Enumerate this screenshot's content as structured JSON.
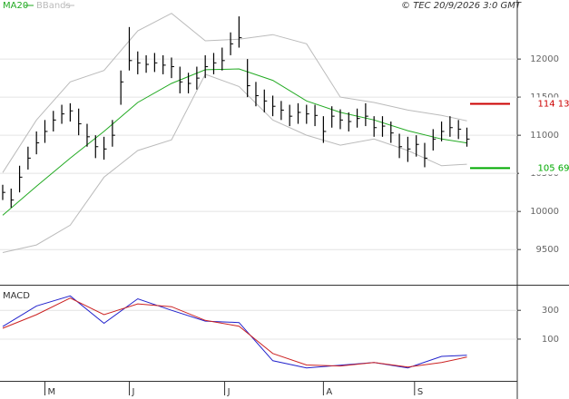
{
  "chart_data": [
    {
      "type": "ohlc",
      "source": "© TEC 20/9/2026 3:0 GMT",
      "xlim": [
        -0.32,
        60.97
      ],
      "ylim": [
        9050,
        12775
      ],
      "yticks": [
        9500,
        10000,
        10500,
        11000,
        11500,
        12000
      ],
      "grid": true,
      "high": [
        10350,
        10300,
        10600,
        10850,
        11050,
        11200,
        11320,
        11400,
        11420,
        11350,
        11150,
        11000,
        10980,
        11200,
        11850,
        12420,
        12100,
        12050,
        12080,
        12050,
        12020,
        11900,
        11820,
        11900,
        12050,
        12080,
        12150,
        12350,
        12560,
        12000,
        11700,
        11600,
        11520,
        11450,
        11400,
        11420,
        11400,
        11400,
        11250,
        11380,
        11340,
        11300,
        11350,
        11420,
        11250,
        11250,
        11180,
        11020,
        10980,
        11000,
        10900,
        11080,
        11180,
        11250,
        11200,
        11100
      ],
      "low": [
        10150,
        10050,
        10250,
        10550,
        10750,
        10900,
        11050,
        11150,
        11180,
        11000,
        10850,
        10700,
        10680,
        10850,
        11400,
        11850,
        11800,
        11820,
        11830,
        11800,
        11750,
        11550,
        11550,
        11600,
        11750,
        11800,
        11850,
        12050,
        12150,
        11500,
        11380,
        11300,
        11250,
        11200,
        11120,
        11150,
        11150,
        11120,
        10900,
        11100,
        11080,
        11050,
        11100,
        11120,
        10980,
        10980,
        10900,
        10700,
        10650,
        10720,
        10580,
        10800,
        10920,
        10980,
        10950,
        10850
      ],
      "close": [
        10250,
        10150,
        10450,
        10700,
        10900,
        11050,
        11200,
        11280,
        11320,
        11150,
        10980,
        10850,
        10820,
        11000,
        11700,
        11980,
        11950,
        11930,
        11950,
        11920,
        11900,
        11700,
        11680,
        11750,
        11900,
        11950,
        11980,
        12200,
        12280,
        11650,
        11520,
        11450,
        11380,
        11330,
        11250,
        11300,
        11280,
        11260,
        11050,
        11250,
        11200,
        11180,
        11220,
        11250,
        11100,
        11120,
        11030,
        10850,
        10820,
        10880,
        10700,
        10950,
        11050,
        11100,
        11080,
        10950
      ],
      "color": "#000000",
      "line_x": [
        0,
        4,
        8,
        12,
        16,
        20,
        24,
        28,
        32,
        36,
        40,
        44,
        48,
        52,
        55
      ],
      "series": [
        {
          "name": "MA20",
          "color": "#22aa22",
          "values": [
            9950,
            10330,
            10700,
            11050,
            11430,
            11680,
            11860,
            11870,
            11720,
            11450,
            11300,
            11200,
            11060,
            10950,
            10900
          ]
        },
        {
          "name": "BBands",
          "color": "#bbbbbb",
          "upper": [
            10510,
            11200,
            11700,
            11850,
            12370,
            12600,
            12240,
            12260,
            12320,
            12200,
            11500,
            11430,
            11330,
            11260,
            11190
          ],
          "lower": [
            9460,
            9560,
            9820,
            10450,
            10800,
            10940,
            11800,
            11640,
            11200,
            11000,
            10870,
            10950,
            10800,
            10600,
            10620
          ]
        }
      ],
      "markers": [
        {
          "value": 11413,
          "label": "114 13",
          "color": "#cc0000"
        },
        {
          "value": 10569,
          "label": "105 69",
          "color": "#00aa00"
        }
      ]
    },
    {
      "type": "line",
      "title": "MACD",
      "xlim": [
        -0.32,
        60.97
      ],
      "ylim": [
        -190,
        465
      ],
      "yticks": [
        100,
        300
      ],
      "grid": true,
      "x": [
        0,
        4,
        8,
        12,
        16,
        20,
        24,
        28,
        32,
        36,
        40,
        44,
        48,
        52,
        55
      ],
      "xticks": [
        {
          "value": 5,
          "label": "M"
        },
        {
          "value": 15,
          "label": "J"
        },
        {
          "value": 26.3,
          "label": "J"
        },
        {
          "value": 38,
          "label": "A"
        },
        {
          "value": 48.8,
          "label": "S"
        }
      ],
      "series": [
        {
          "color": "#2222cc",
          "values": [
            187,
            330,
            400,
            210,
            380,
            300,
            225,
            215,
            -50,
            -100,
            -81,
            -62,
            -100,
            -20,
            -12
          ]
        },
        {
          "color": "#cc2222",
          "values": [
            175,
            270,
            385,
            270,
            345,
            325,
            230,
            190,
            0,
            -80,
            -87,
            -62,
            -94,
            -62,
            -25
          ]
        }
      ]
    }
  ]
}
